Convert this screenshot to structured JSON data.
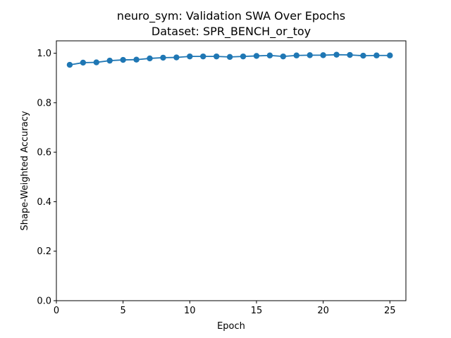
{
  "chart_data": {
    "type": "line",
    "title_line1": "neuro_sym: Validation SWA Over Epochs",
    "title_line2": "Dataset: SPR_BENCH_or_toy",
    "xlabel": "Epoch",
    "ylabel": "Shape-Weighted Accuracy",
    "xlim": [
      0,
      26.2
    ],
    "ylim": [
      0,
      1.05
    ],
    "xticks": [
      0,
      5,
      10,
      15,
      20,
      25
    ],
    "yticks": [
      0.0,
      0.2,
      0.4,
      0.6,
      0.8,
      1.0
    ],
    "xtick_labels": [
      "0",
      "5",
      "10",
      "15",
      "20",
      "25"
    ],
    "ytick_labels": [
      "0.0",
      "0.2",
      "0.4",
      "0.6",
      "0.8",
      "1.0"
    ],
    "grid": false,
    "legend": "none",
    "series": [
      {
        "color": "#1f77b4",
        "marker": "circle",
        "x": [
          1,
          2,
          3,
          4,
          5,
          6,
          7,
          8,
          9,
          10,
          11,
          12,
          13,
          14,
          15,
          16,
          17,
          18,
          19,
          20,
          21,
          22,
          23,
          24,
          25
        ],
        "y": [
          0.953,
          0.962,
          0.963,
          0.97,
          0.973,
          0.974,
          0.979,
          0.982,
          0.983,
          0.987,
          0.987,
          0.987,
          0.985,
          0.987,
          0.989,
          0.991,
          0.987,
          0.991,
          0.992,
          0.992,
          0.994,
          0.993,
          0.99,
          0.991,
          0.991
        ]
      }
    ]
  }
}
